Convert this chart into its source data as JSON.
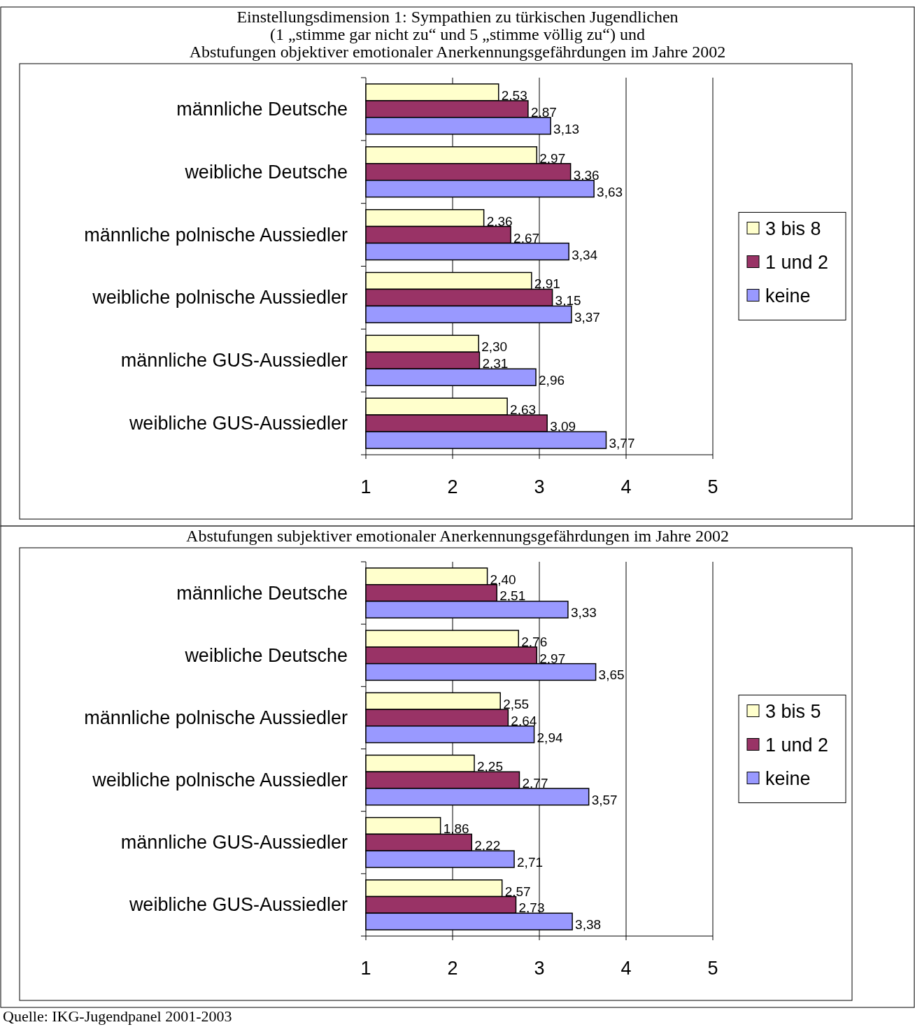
{
  "chart_data": [
    {
      "type": "bar",
      "orientation": "horizontal",
      "title": "Einstellungsdimension 1: Sympathien zu türkischen Jugendlichen\n(1 „stimme gar nicht zu“ und 5 „stimme völlig zu“) und\nAbstufungen objektiver emotionaler Anerkennungsgefährdungen im Jahre 2002",
      "categories": [
        "männliche Deutsche",
        "weibliche Deutsche",
        "männliche polnische Aussiedler",
        "weibliche polnische Aussiedler",
        "männliche GUS-Aussiedler",
        "weibliche GUS-Aussiedler"
      ],
      "series": [
        {
          "name": "3 bis 8",
          "color": "#ffffcc",
          "values": [
            2.53,
            2.97,
            2.36,
            2.91,
            2.3,
            2.63
          ],
          "value_labels": [
            "2,53",
            "2,97",
            "2,36",
            "2,91",
            "2,30",
            "2,63"
          ]
        },
        {
          "name": "1 und 2",
          "color": "#993366",
          "values": [
            2.87,
            3.36,
            2.67,
            3.15,
            2.31,
            3.09
          ],
          "value_labels": [
            "2,87",
            "3,36",
            "2,67",
            "3,15",
            "2,31",
            "3,09"
          ]
        },
        {
          "name": "keine",
          "color": "#9999ff",
          "values": [
            3.13,
            3.63,
            3.34,
            3.37,
            2.96,
            3.77
          ],
          "value_labels": [
            "3,13",
            "3,63",
            "3,34",
            "3,37",
            "2,96",
            "3,77"
          ]
        }
      ],
      "xlim": [
        1,
        5
      ],
      "xticks": [
        1,
        2,
        3,
        4,
        5
      ],
      "grid": "x",
      "legend": "right"
    },
    {
      "type": "bar",
      "orientation": "horizontal",
      "title": "Abstufungen subjektiver emotionaler Anerkennungsgefährdungen im Jahre 2002",
      "categories": [
        "männliche Deutsche",
        "weibliche Deutsche",
        "männliche polnische Aussiedler",
        "weibliche polnische Aussiedler",
        "männliche GUS-Aussiedler",
        "weibliche GUS-Aussiedler"
      ],
      "series": [
        {
          "name": "3 bis 5",
          "color": "#ffffcc",
          "values": [
            2.4,
            2.76,
            2.55,
            2.25,
            1.86,
            2.57
          ],
          "value_labels": [
            "2,40",
            "2,76",
            "2,55",
            "2,25",
            "1,86",
            "2,57"
          ]
        },
        {
          "name": "1 und 2",
          "color": "#993366",
          "values": [
            2.51,
            2.97,
            2.64,
            2.77,
            2.22,
            2.73
          ],
          "value_labels": [
            "2,51",
            "2,97",
            "2,64",
            "2,77",
            "2,22",
            "2,73"
          ]
        },
        {
          "name": "keine",
          "color": "#9999ff",
          "values": [
            3.33,
            3.65,
            2.94,
            3.57,
            2.71,
            3.38
          ],
          "value_labels": [
            "3,33",
            "3,65",
            "2,94",
            "3,57",
            "2,71",
            "3,38"
          ]
        }
      ],
      "xlim": [
        1,
        5
      ],
      "xticks": [
        1,
        2,
        3,
        4,
        5
      ],
      "grid": "x",
      "legend": "right",
      "annotations": [
        "Quelle: IKG-Jugendpanel 2001-2003"
      ]
    }
  ]
}
